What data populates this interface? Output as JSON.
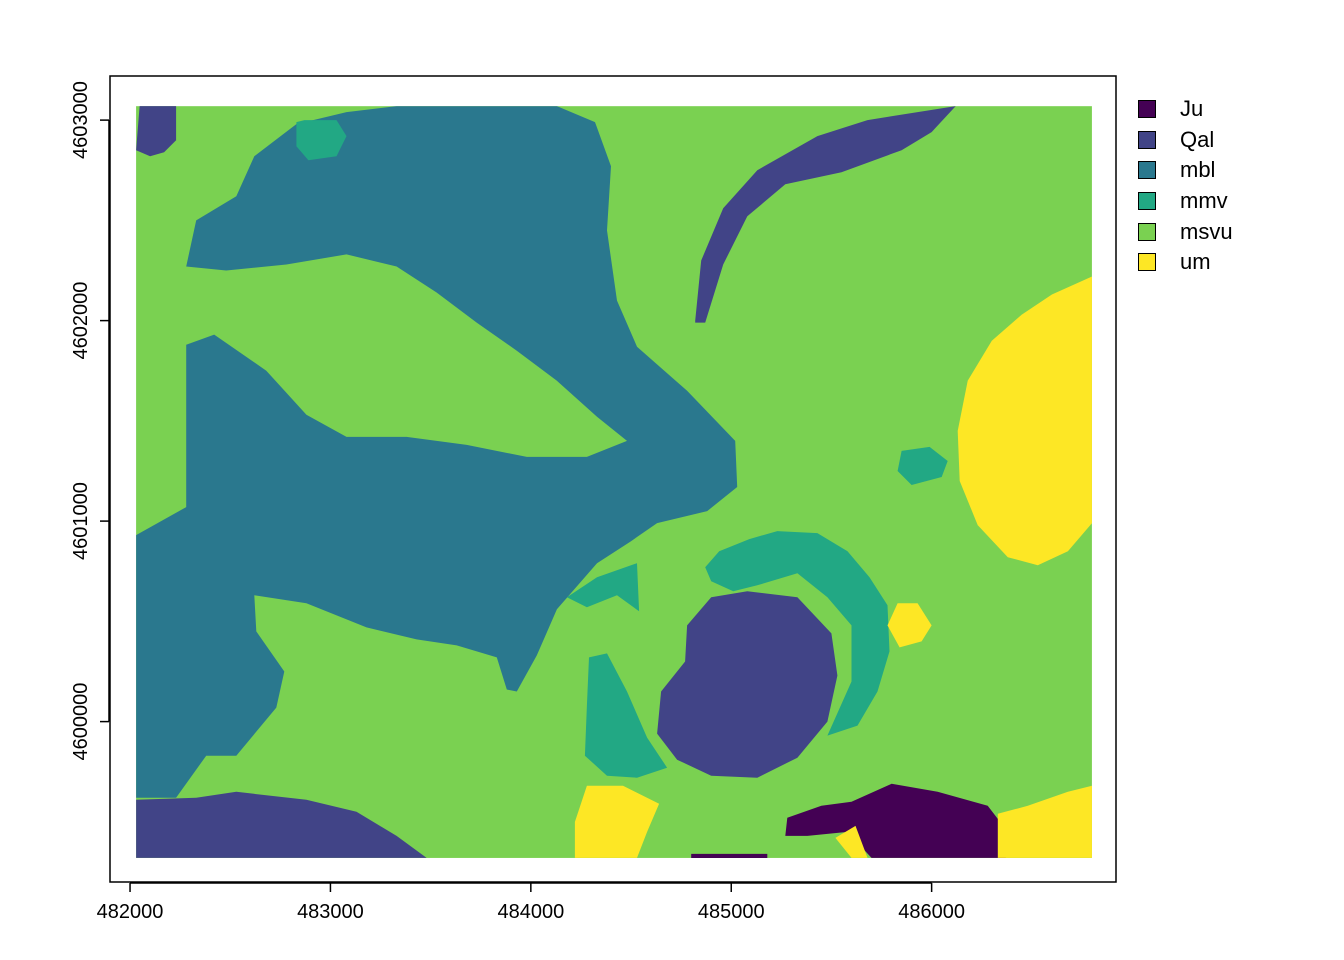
{
  "chart_data": {
    "type": "heatmap",
    "title": "",
    "xlabel": "",
    "ylabel": "",
    "xlim": [
      481900,
      486920
    ],
    "ylim": [
      4599200,
      4603220
    ],
    "extent": {
      "xmin": 482030,
      "xmax": 486800,
      "ymin": 4599320,
      "ymax": 4603070
    },
    "x_ticks": [
      482000,
      483000,
      484000,
      485000,
      486000
    ],
    "y_ticks": [
      4600000,
      4601000,
      4602000,
      4603000
    ],
    "x_tick_labels": [
      "482000",
      "483000",
      "484000",
      "485000",
      "486000"
    ],
    "y_tick_labels": [
      "4600000",
      "4601000",
      "4602000",
      "4603000"
    ],
    "legend_placement": "right",
    "grid": false,
    "background_class": "msvu",
    "classes": [
      {
        "name": "Ju",
        "color": "#440154"
      },
      {
        "name": "Qal",
        "color": "#414487"
      },
      {
        "name": "mbl",
        "color": "#2A788E"
      },
      {
        "name": "mmv",
        "color": "#22A884"
      },
      {
        "name": "msvu",
        "color": "#7AD151"
      },
      {
        "name": "um",
        "color": "#FDE725"
      }
    ],
    "regions": [
      {
        "class": "mbl",
        "coords": [
          [
            482030,
            4599620
          ],
          [
            482030,
            4600930
          ],
          [
            482280,
            4601070
          ],
          [
            482280,
            4601880
          ],
          [
            482420,
            4601930
          ],
          [
            482680,
            4601750
          ],
          [
            482880,
            4601530
          ],
          [
            483080,
            4601420
          ],
          [
            483380,
            4601420
          ],
          [
            483680,
            4601380
          ],
          [
            483980,
            4601320
          ],
          [
            484280,
            4601320
          ],
          [
            484480,
            4601400
          ],
          [
            484330,
            4601520
          ],
          [
            484130,
            4601700
          ],
          [
            483930,
            4601850
          ],
          [
            483730,
            4601990
          ],
          [
            483530,
            4602140
          ],
          [
            483330,
            4602270
          ],
          [
            483080,
            4602330
          ],
          [
            482780,
            4602280
          ],
          [
            482480,
            4602250
          ],
          [
            482280,
            4602270
          ],
          [
            482330,
            4602500
          ],
          [
            482530,
            4602620
          ],
          [
            482620,
            4602820
          ],
          [
            482830,
            4602980
          ],
          [
            483080,
            4603040
          ],
          [
            483330,
            4603070
          ],
          [
            484130,
            4603070
          ],
          [
            484320,
            4602990
          ],
          [
            484400,
            4602770
          ],
          [
            484380,
            4602450
          ],
          [
            484430,
            4602100
          ],
          [
            484530,
            4601870
          ],
          [
            484780,
            4601650
          ],
          [
            485020,
            4601400
          ],
          [
            485030,
            4601170
          ],
          [
            484880,
            4601050
          ],
          [
            484630,
            4600990
          ],
          [
            484500,
            4600900
          ],
          [
            484330,
            4600790
          ],
          [
            484130,
            4600560
          ],
          [
            484030,
            4600330
          ],
          [
            483930,
            4600150
          ],
          [
            483880,
            4600160
          ],
          [
            483830,
            4600320
          ],
          [
            483630,
            4600380
          ],
          [
            483430,
            4600410
          ],
          [
            483180,
            4600470
          ],
          [
            482880,
            4600590
          ],
          [
            482620,
            4600630
          ],
          [
            482630,
            4600450
          ],
          [
            482770,
            4600250
          ],
          [
            482730,
            4600070
          ],
          [
            482530,
            4599830
          ],
          [
            482380,
            4599830
          ],
          [
            482230,
            4599620
          ]
        ]
      },
      {
        "class": "Qal",
        "coords": [
          [
            482030,
            4602850
          ],
          [
            482050,
            4603100
          ],
          [
            482230,
            4603100
          ],
          [
            482230,
            4602900
          ],
          [
            482170,
            4602840
          ],
          [
            482100,
            4602820
          ]
        ]
      },
      {
        "class": "mmv",
        "coords": [
          [
            482830,
            4602990
          ],
          [
            482870,
            4603000
          ],
          [
            483030,
            4603000
          ],
          [
            483080,
            4602920
          ],
          [
            483030,
            4602820
          ],
          [
            482890,
            4602800
          ],
          [
            482830,
            4602870
          ]
        ]
      },
      {
        "class": "Qal",
        "coords": [
          [
            484820,
            4602000
          ],
          [
            484850,
            4602300
          ],
          [
            484960,
            4602560
          ],
          [
            485130,
            4602750
          ],
          [
            485430,
            4602920
          ],
          [
            485680,
            4603000
          ],
          [
            486120,
            4603070
          ],
          [
            486000,
            4602940
          ],
          [
            485850,
            4602850
          ],
          [
            485550,
            4602740
          ],
          [
            485270,
            4602680
          ],
          [
            485080,
            4602520
          ],
          [
            484960,
            4602280
          ],
          [
            484870,
            4601990
          ],
          [
            484820,
            4601990
          ]
        ]
      },
      {
        "class": "um",
        "coords": [
          [
            486800,
            4602220
          ],
          [
            486600,
            4602130
          ],
          [
            486450,
            4602030
          ],
          [
            486300,
            4601900
          ],
          [
            486180,
            4601700
          ],
          [
            486130,
            4601450
          ],
          [
            486140,
            4601200
          ],
          [
            486230,
            4600980
          ],
          [
            486380,
            4600820
          ],
          [
            486530,
            4600780
          ],
          [
            486680,
            4600850
          ],
          [
            486800,
            4600990
          ]
        ]
      },
      {
        "class": "mmv",
        "coords": [
          [
            485830,
            4601250
          ],
          [
            485850,
            4601350
          ],
          [
            485990,
            4601370
          ],
          [
            486080,
            4601300
          ],
          [
            486050,
            4601220
          ],
          [
            485900,
            4601180
          ]
        ]
      },
      {
        "class": "mmv",
        "coords": [
          [
            484180,
            4600620
          ],
          [
            484330,
            4600720
          ],
          [
            484530,
            4600790
          ],
          [
            484540,
            4600550
          ],
          [
            484430,
            4600630
          ],
          [
            484280,
            4600570
          ]
        ]
      },
      {
        "class": "mmv",
        "coords": [
          [
            484870,
            4600770
          ],
          [
            484940,
            4600850
          ],
          [
            485090,
            4600910
          ],
          [
            485230,
            4600950
          ],
          [
            485430,
            4600940
          ],
          [
            485580,
            4600850
          ],
          [
            485690,
            4600720
          ],
          [
            485780,
            4600580
          ],
          [
            485790,
            4600350
          ],
          [
            485730,
            4600150
          ],
          [
            485630,
            4599980
          ],
          [
            485480,
            4599930
          ],
          [
            485600,
            4600200
          ],
          [
            485600,
            4600480
          ],
          [
            485480,
            4600620
          ],
          [
            485330,
            4600740
          ],
          [
            485130,
            4600680
          ],
          [
            485010,
            4600650
          ],
          [
            484900,
            4600700
          ]
        ]
      },
      {
        "class": "Qal",
        "coords": [
          [
            484780,
            4600480
          ],
          [
            484900,
            4600620
          ],
          [
            485080,
            4600650
          ],
          [
            485330,
            4600620
          ],
          [
            485500,
            4600440
          ],
          [
            485530,
            4600230
          ],
          [
            485480,
            4600000
          ],
          [
            485330,
            4599820
          ],
          [
            485130,
            4599720
          ],
          [
            484900,
            4599730
          ],
          [
            484730,
            4599810
          ],
          [
            484630,
            4599940
          ],
          [
            484650,
            4600150
          ],
          [
            484770,
            4600300
          ]
        ]
      },
      {
        "class": "mmv",
        "coords": [
          [
            484280,
            4600080
          ],
          [
            484290,
            4600320
          ],
          [
            484380,
            4600340
          ],
          [
            484480,
            4600150
          ],
          [
            484580,
            4599920
          ],
          [
            484680,
            4599770
          ],
          [
            484530,
            4599720
          ],
          [
            484380,
            4599730
          ],
          [
            484270,
            4599830
          ]
        ]
      },
      {
        "class": "Qal",
        "coords": [
          [
            482030,
            4599320
          ],
          [
            483480,
            4599320
          ],
          [
            483330,
            4599430
          ],
          [
            483130,
            4599550
          ],
          [
            482880,
            4599610
          ],
          [
            482530,
            4599650
          ],
          [
            482330,
            4599620
          ],
          [
            482030,
            4599610
          ]
        ]
      },
      {
        "class": "um",
        "coords": [
          [
            484220,
            4599320
          ],
          [
            484530,
            4599320
          ],
          [
            484580,
            4599450
          ],
          [
            484640,
            4599590
          ],
          [
            484460,
            4599680
          ],
          [
            484280,
            4599680
          ],
          [
            484220,
            4599500
          ]
        ]
      },
      {
        "class": "Ju",
        "coords": [
          [
            484800,
            4599300
          ],
          [
            485180,
            4599300
          ],
          [
            485180,
            4599340
          ],
          [
            484800,
            4599340
          ]
        ]
      },
      {
        "class": "Ju",
        "coords": [
          [
            485270,
            4599430
          ],
          [
            485280,
            4599520
          ],
          [
            485450,
            4599580
          ],
          [
            485600,
            4599600
          ],
          [
            485800,
            4599690
          ],
          [
            486030,
            4599650
          ],
          [
            486280,
            4599580
          ],
          [
            486380,
            4599450
          ],
          [
            486370,
            4599320
          ],
          [
            485980,
            4599320
          ],
          [
            485700,
            4599320
          ],
          [
            485580,
            4599450
          ],
          [
            485380,
            4599430
          ]
        ]
      },
      {
        "class": "um",
        "coords": [
          [
            485520,
            4599420
          ],
          [
            485620,
            4599480
          ],
          [
            485680,
            4599320
          ],
          [
            485600,
            4599320
          ]
        ]
      },
      {
        "class": "um",
        "coords": [
          [
            486330,
            4599320
          ],
          [
            486800,
            4599320
          ],
          [
            486800,
            4599680
          ],
          [
            486680,
            4599650
          ],
          [
            486480,
            4599580
          ],
          [
            486330,
            4599540
          ]
        ]
      },
      {
        "class": "um",
        "coords": [
          [
            485780,
            4600480
          ],
          [
            485830,
            4600590
          ],
          [
            485930,
            4600590
          ],
          [
            486000,
            4600480
          ],
          [
            485950,
            4600400
          ],
          [
            485840,
            4600370
          ]
        ]
      }
    ]
  },
  "legend": {
    "items": [
      {
        "label": "Ju",
        "color": "#440154"
      },
      {
        "label": "Qal",
        "color": "#414487"
      },
      {
        "label": "mbl",
        "color": "#2A788E"
      },
      {
        "label": "mmv",
        "color": "#22A884"
      },
      {
        "label": "msvu",
        "color": "#7AD151"
      },
      {
        "label": "um",
        "color": "#FDE725"
      }
    ]
  }
}
